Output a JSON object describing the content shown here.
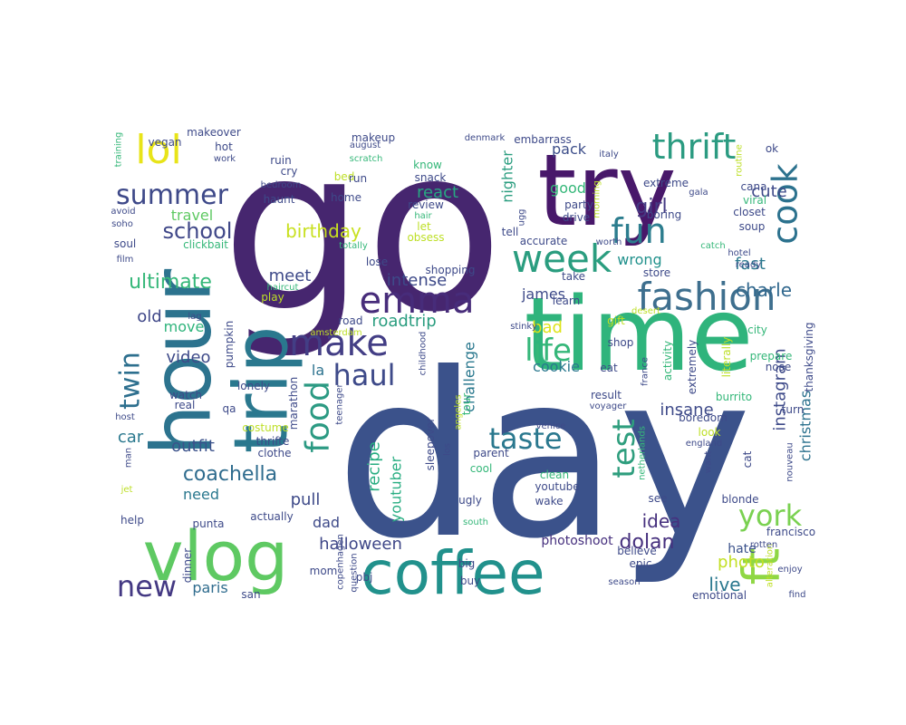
{
  "cloud": {
    "words": [
      {
        "text": "go",
        "color": "#46266f"
      },
      {
        "text": "day",
        "color": "#3b528b"
      },
      {
        "text": "time",
        "color": "#2fb47c"
      },
      {
        "text": "try",
        "color": "#48186a"
      },
      {
        "text": "hour",
        "color": "#2c738e"
      },
      {
        "text": "trip",
        "color": "#2a788e"
      },
      {
        "text": "vlog",
        "color": "#5ec962"
      },
      {
        "text": "coffee",
        "color": "#21918c"
      },
      {
        "text": "fashion",
        "color": "#3e6f8e"
      },
      {
        "text": "emma",
        "color": "#472c7a"
      },
      {
        "text": "week",
        "color": "#2a9d7f"
      },
      {
        "text": "thrift",
        "color": "#2b9b81"
      },
      {
        "text": "fun",
        "color": "#2c7d8e"
      },
      {
        "text": "cook",
        "color": "#2c728e"
      },
      {
        "text": "lol",
        "color": "#e8e419"
      },
      {
        "text": "summer",
        "color": "#3e4989"
      },
      {
        "text": "make",
        "color": "#433e85"
      },
      {
        "text": "life",
        "color": "#35b779"
      },
      {
        "text": "food",
        "color": "#2c9a83"
      },
      {
        "text": "haul",
        "color": "#3e4a89"
      },
      {
        "text": "test",
        "color": "#2f9e7e"
      },
      {
        "text": "taste",
        "color": "#2a788e"
      },
      {
        "text": "twin",
        "color": "#2d6f8e"
      },
      {
        "text": "ft",
        "color": "#8fd744"
      },
      {
        "text": "york",
        "color": "#7ad151"
      },
      {
        "text": "new",
        "color": "#443983"
      },
      {
        "text": "coachella",
        "color": "#2f6c8e"
      },
      {
        "text": "school",
        "color": "#3f4788"
      },
      {
        "text": "travel",
        "color": "#5ec962"
      },
      {
        "text": "girl",
        "color": "#443a83"
      },
      {
        "text": "react",
        "color": "#27a882"
      },
      {
        "text": "good",
        "color": "#35b779"
      },
      {
        "text": "pack",
        "color": "#3d4e8a"
      },
      {
        "text": "nighter",
        "color": "#2a9d7f"
      },
      {
        "text": "cute",
        "color": "#3e4a89"
      },
      {
        "text": "ultimate",
        "color": "#35b779"
      },
      {
        "text": "birthday",
        "color": "#c8e020"
      },
      {
        "text": "meet",
        "color": "#3e4a89"
      },
      {
        "text": "intense",
        "color": "#3e4a89"
      },
      {
        "text": "james",
        "color": "#3e4a89"
      },
      {
        "text": "wrong",
        "color": "#21918c"
      },
      {
        "text": "charle",
        "color": "#31688e"
      },
      {
        "text": "fast",
        "color": "#2a788e"
      },
      {
        "text": "instagram",
        "color": "#3e4a89"
      },
      {
        "text": "christmas",
        "color": "#2c728e"
      },
      {
        "text": "insane",
        "color": "#3e4a89"
      },
      {
        "text": "idea",
        "color": "#46307e"
      },
      {
        "text": "dolan",
        "color": "#46307e"
      },
      {
        "text": "halloween",
        "color": "#3f4788"
      },
      {
        "text": "photo",
        "color": "#c2df23"
      },
      {
        "text": "live",
        "color": "#2a788e"
      },
      {
        "text": "hate",
        "color": "#3b528b"
      },
      {
        "text": "outfit",
        "color": "#3b528b"
      },
      {
        "text": "recipe",
        "color": "#27ad81"
      },
      {
        "text": "youtuber",
        "color": "#27ad81"
      },
      {
        "text": "challenge",
        "color": "#2a788e"
      },
      {
        "text": "roadtrip",
        "color": "#2a9d7f"
      },
      {
        "text": "bad",
        "color": "#dde318"
      },
      {
        "text": "cookie",
        "color": "#2a788e"
      },
      {
        "text": "video",
        "color": "#3e4a89"
      },
      {
        "text": "move",
        "color": "#2fb47c"
      },
      {
        "text": "old",
        "color": "#3f4788"
      },
      {
        "text": "la",
        "color": "#2c728e"
      },
      {
        "text": "car",
        "color": "#2a788e"
      },
      {
        "text": "need",
        "color": "#2a788e"
      },
      {
        "text": "pull",
        "color": "#3e4a89"
      },
      {
        "text": "dad",
        "color": "#3e4a89"
      },
      {
        "text": "paris",
        "color": "#2f6c8e"
      },
      {
        "text": "photoshoot",
        "color": "#46307e"
      },
      {
        "text": "emotional",
        "color": "#3e4a89"
      },
      {
        "text": "vegan",
        "color": "#3e4a89"
      },
      {
        "text": "makeover",
        "color": "#3e4a89"
      },
      {
        "text": "makeup",
        "color": "#3e4a89"
      },
      {
        "text": "august",
        "color": "#3e4a89"
      },
      {
        "text": "denmark",
        "color": "#3e4a89"
      },
      {
        "text": "embarrass",
        "color": "#3e4a89"
      },
      {
        "text": "training",
        "color": "#35b779"
      },
      {
        "text": "hot",
        "color": "#3e4a89"
      },
      {
        "text": "work",
        "color": "#3e4a89"
      },
      {
        "text": "cry",
        "color": "#3e4a89"
      },
      {
        "text": "ruin",
        "color": "#3e4a89"
      },
      {
        "text": "bedroom",
        "color": "#3e4a89"
      },
      {
        "text": "scratch",
        "color": "#35b779"
      },
      {
        "text": "bed",
        "color": "#bddf26"
      },
      {
        "text": "run",
        "color": "#3e4a89"
      },
      {
        "text": "haunt",
        "color": "#3e4a89"
      },
      {
        "text": "home",
        "color": "#3e4a89"
      },
      {
        "text": "know",
        "color": "#35b779"
      },
      {
        "text": "snack",
        "color": "#3e4a89"
      },
      {
        "text": "review",
        "color": "#3e4a89"
      },
      {
        "text": "hair",
        "color": "#35b779"
      },
      {
        "text": "let",
        "color": "#bddf26"
      },
      {
        "text": "obsess",
        "color": "#bddf26"
      },
      {
        "text": "party",
        "color": "#3e4a89"
      },
      {
        "text": "extreme",
        "color": "#3e4a89"
      },
      {
        "text": "boring",
        "color": "#3e4a89"
      },
      {
        "text": "drive",
        "color": "#3e4a89"
      },
      {
        "text": "italy",
        "color": "#3e4a89"
      },
      {
        "text": "morning",
        "color": "#bddf26"
      },
      {
        "text": "routine",
        "color": "#bddf26"
      },
      {
        "text": "gala",
        "color": "#3e4a89"
      },
      {
        "text": "ok",
        "color": "#3e4a89"
      },
      {
        "text": "cana",
        "color": "#3e4a89"
      },
      {
        "text": "viral",
        "color": "#35b779"
      },
      {
        "text": "closet",
        "color": "#3e4a89"
      },
      {
        "text": "soup",
        "color": "#3e4a89"
      },
      {
        "text": "avoid",
        "color": "#3e4a89"
      },
      {
        "text": "soho",
        "color": "#3e4a89"
      },
      {
        "text": "soul",
        "color": "#3e4a89"
      },
      {
        "text": "clickbait",
        "color": "#35b779"
      },
      {
        "text": "totally",
        "color": "#35b779"
      },
      {
        "text": "tell",
        "color": "#3e4a89"
      },
      {
        "text": "accurate",
        "color": "#3e4a89"
      },
      {
        "text": "ugg",
        "color": "#3e4a89"
      },
      {
        "text": "worth",
        "color": "#3e4a89"
      },
      {
        "text": "catch",
        "color": "#35b779"
      },
      {
        "text": "hotel",
        "color": "#3e4a89"
      },
      {
        "text": "ready",
        "color": "#3e4a89"
      },
      {
        "text": "film",
        "color": "#3e4a89"
      },
      {
        "text": "lose",
        "color": "#3e4a89"
      },
      {
        "text": "shopping",
        "color": "#3e4a89"
      },
      {
        "text": "take",
        "color": "#3e4a89"
      },
      {
        "text": "store",
        "color": "#3e4a89"
      },
      {
        "text": "learn",
        "color": "#3e4a89"
      },
      {
        "text": "haircut",
        "color": "#35b779"
      },
      {
        "text": "play",
        "color": "#bddf26"
      },
      {
        "text": "road",
        "color": "#3e4a89"
      },
      {
        "text": "amsterdam",
        "color": "#bddf26"
      },
      {
        "text": "stinky",
        "color": "#3e4a89"
      },
      {
        "text": "gift",
        "color": "#bddf26"
      },
      {
        "text": "desert",
        "color": "#bddf26"
      },
      {
        "text": "city",
        "color": "#35b779"
      },
      {
        "text": "lag",
        "color": "#3e4a89"
      },
      {
        "text": "pumpkin",
        "color": "#3e4a89"
      },
      {
        "text": "childhood",
        "color": "#3e4a89"
      },
      {
        "text": "shop",
        "color": "#3e4a89"
      },
      {
        "text": "activity",
        "color": "#35b779"
      },
      {
        "text": "extremely",
        "color": "#3e4a89"
      },
      {
        "text": "literally",
        "color": "#bddf26"
      },
      {
        "text": "prepare",
        "color": "#35b779"
      },
      {
        "text": "thanksgiving",
        "color": "#3e4a89"
      },
      {
        "text": "nose",
        "color": "#3e4a89"
      },
      {
        "text": "eat",
        "color": "#3e4a89"
      },
      {
        "text": "france",
        "color": "#3e4a89"
      },
      {
        "text": "lonely",
        "color": "#3e4a89"
      },
      {
        "text": "watch",
        "color": "#3e4a89"
      },
      {
        "text": "real",
        "color": "#3e4a89"
      },
      {
        "text": "qa",
        "color": "#3e4a89"
      },
      {
        "text": "host",
        "color": "#3e4a89"
      },
      {
        "text": "marathon",
        "color": "#3e4a89"
      },
      {
        "text": "teenager",
        "color": "#3e4a89"
      },
      {
        "text": "angeles",
        "color": "#bddf26"
      },
      {
        "text": "tour",
        "color": "#35b779"
      },
      {
        "text": "result",
        "color": "#3e4a89"
      },
      {
        "text": "voyager",
        "color": "#3e4a89"
      },
      {
        "text": "burrito",
        "color": "#35b779"
      },
      {
        "text": "turn",
        "color": "#3e4a89"
      },
      {
        "text": "boredom",
        "color": "#3e4a89"
      },
      {
        "text": "costume",
        "color": "#bddf26"
      },
      {
        "text": "thrifte",
        "color": "#3e4a89"
      },
      {
        "text": "clothe",
        "color": "#3e4a89"
      },
      {
        "text": "sleepover",
        "color": "#3e4a89"
      },
      {
        "text": "los",
        "color": "#3e4a89"
      },
      {
        "text": "venice",
        "color": "#3e4a89"
      },
      {
        "text": "parent",
        "color": "#3e4a89"
      },
      {
        "text": "netherlands",
        "color": "#35b779"
      },
      {
        "text": "look",
        "color": "#bddf26"
      },
      {
        "text": "england",
        "color": "#3e4a89"
      },
      {
        "text": "want",
        "color": "#3e4a89"
      },
      {
        "text": "cat",
        "color": "#3e4a89"
      },
      {
        "text": "nouveau",
        "color": "#3e4a89"
      },
      {
        "text": "man",
        "color": "#3e4a89"
      },
      {
        "text": "cool",
        "color": "#35b779"
      },
      {
        "text": "clean",
        "color": "#35b779"
      },
      {
        "text": "youtube",
        "color": "#3e4a89"
      },
      {
        "text": "wake",
        "color": "#3e4a89"
      },
      {
        "text": "see",
        "color": "#3e4a89"
      },
      {
        "text": "blonde",
        "color": "#3e4a89"
      },
      {
        "text": "jet",
        "color": "#bddf26"
      },
      {
        "text": "ugly",
        "color": "#3e4a89"
      },
      {
        "text": "help",
        "color": "#3e4a89"
      },
      {
        "text": "actually",
        "color": "#3e4a89"
      },
      {
        "text": "punta",
        "color": "#3e4a89"
      },
      {
        "text": "south",
        "color": "#35b779"
      },
      {
        "text": "francisco",
        "color": "#3e4a89"
      },
      {
        "text": "believe",
        "color": "#3e4a89"
      },
      {
        "text": "dinner",
        "color": "#3e4a89"
      },
      {
        "text": "copenhagen",
        "color": "#3e4a89"
      },
      {
        "text": "question",
        "color": "#3e4a89"
      },
      {
        "text": "big",
        "color": "#3e4a89"
      },
      {
        "text": "epic",
        "color": "#3e4a89"
      },
      {
        "text": "alteration",
        "color": "#bddf26"
      },
      {
        "text": "rotten",
        "color": "#3e4a89"
      },
      {
        "text": "enjoy",
        "color": "#3e4a89"
      },
      {
        "text": "pbj",
        "color": "#3e4a89"
      },
      {
        "text": "buy",
        "color": "#3e4a89"
      },
      {
        "text": "season",
        "color": "#3e4a89"
      },
      {
        "text": "san",
        "color": "#3e4a89"
      },
      {
        "text": "mom",
        "color": "#3e4a89"
      },
      {
        "text": "find",
        "color": "#3e4a89"
      }
    ]
  }
}
